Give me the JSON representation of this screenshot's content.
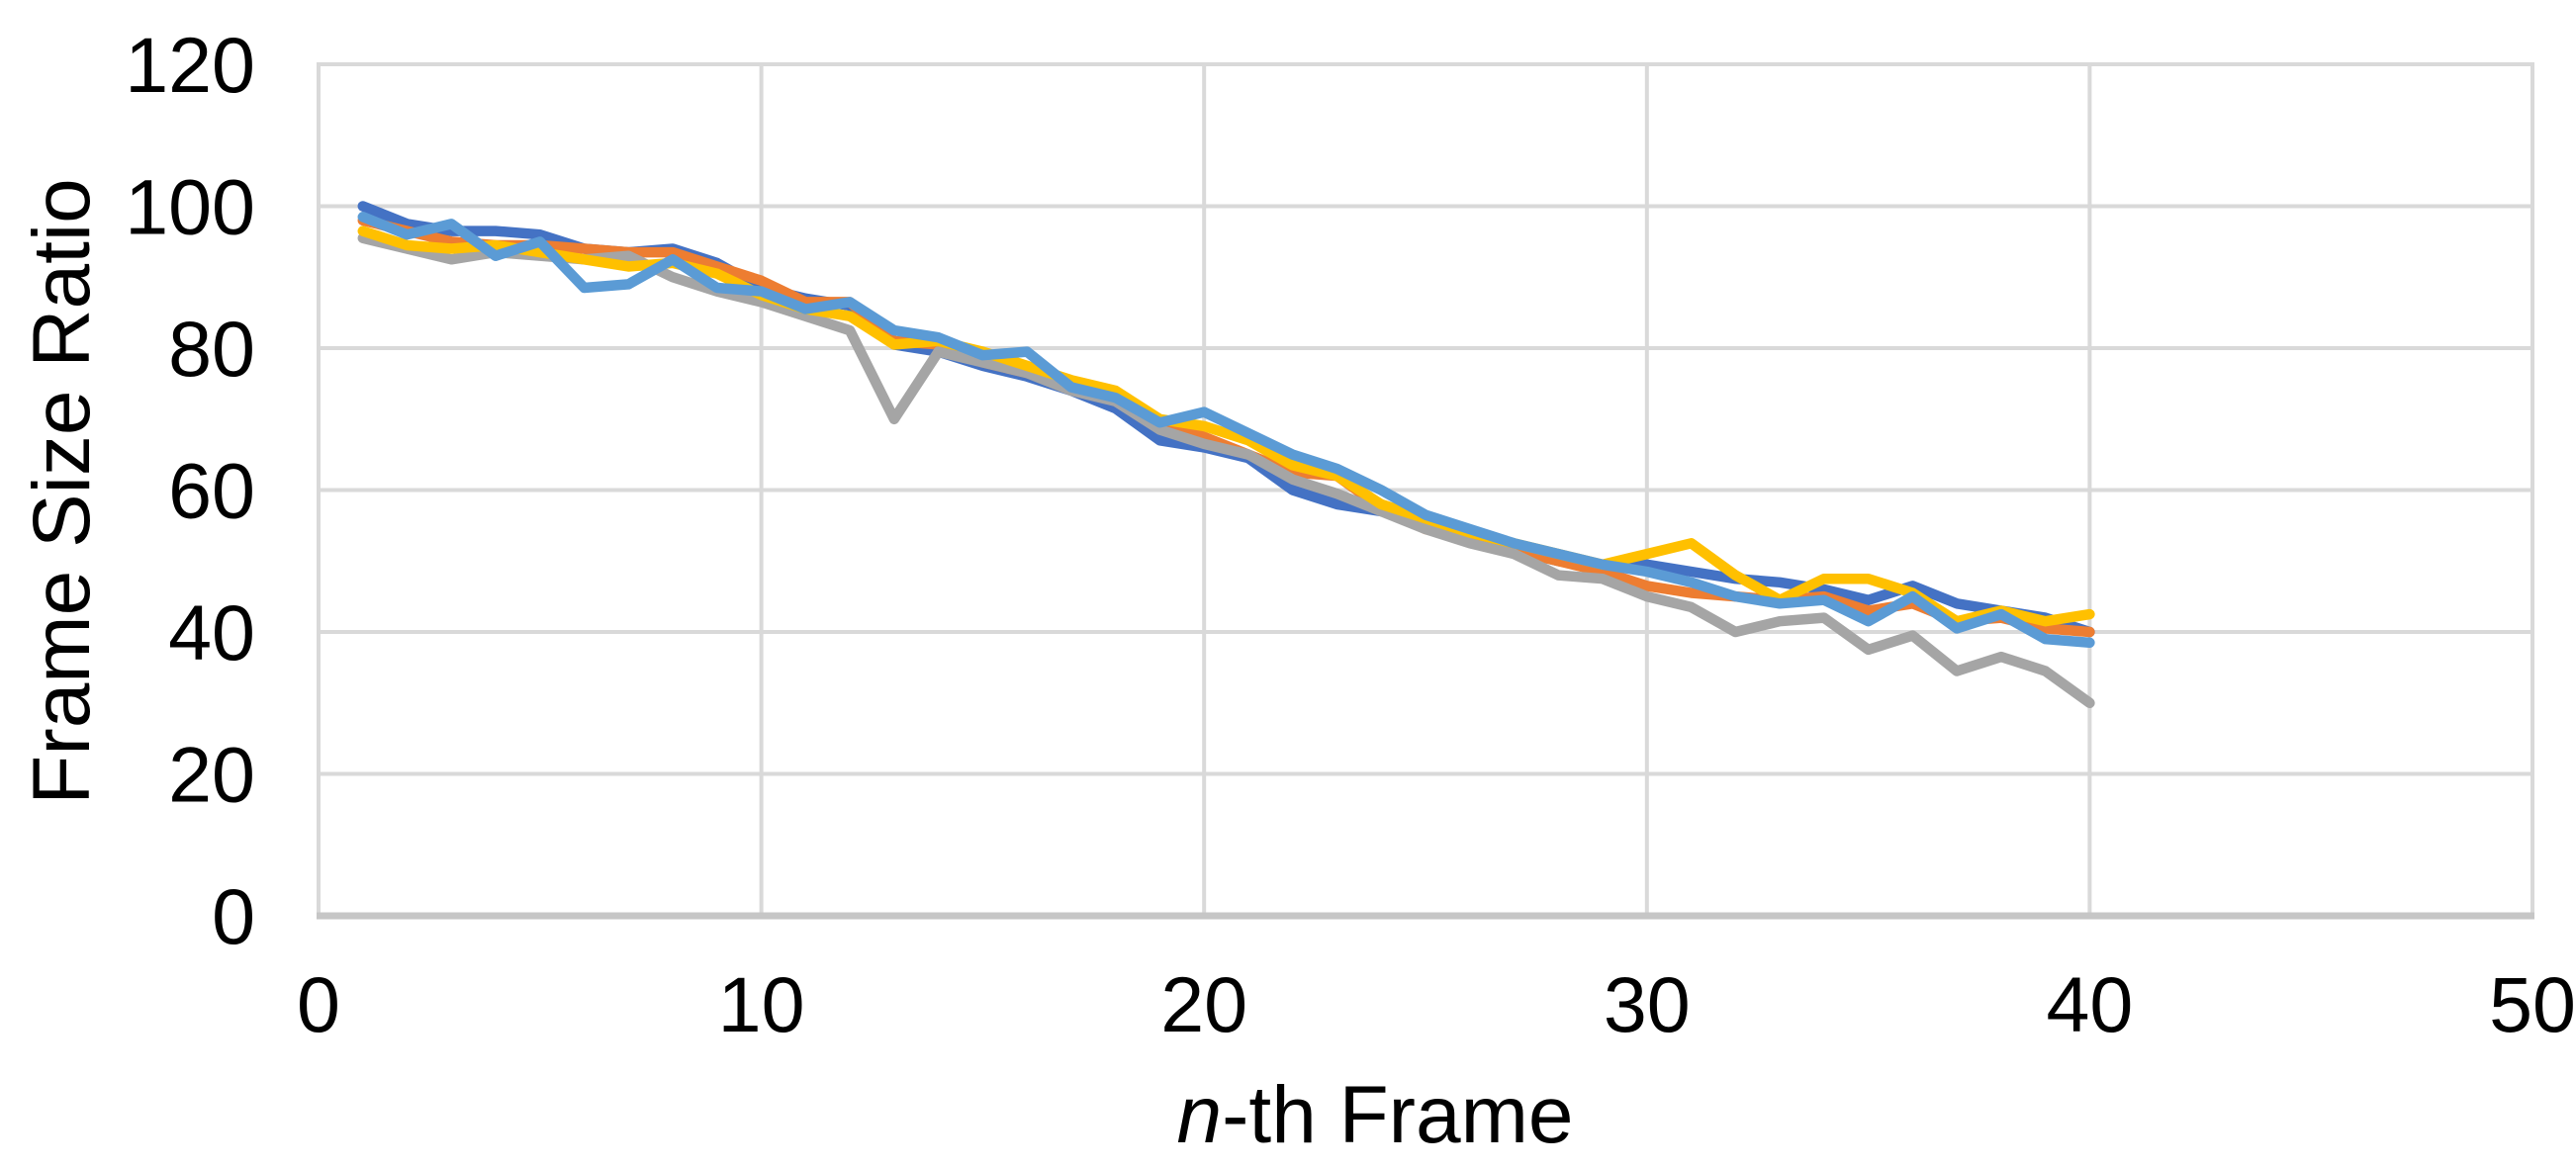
{
  "chart_data": {
    "type": "line",
    "title": "",
    "xlabel": "n-th Frame",
    "xlabel_italic": "n",
    "xlabel_rest": "-th Frame",
    "ylabel": "Frame Size Ratio",
    "xlim": [
      0,
      50
    ],
    "ylim": [
      0,
      120
    ],
    "xticks": [
      0,
      10,
      20,
      30,
      40,
      50
    ],
    "yticks": [
      0,
      20,
      40,
      60,
      80,
      100,
      120
    ],
    "grid": true,
    "legend_position": "none",
    "gridline_color": "#D9D9D9",
    "axis_line_color": "#C6C6C6",
    "text_color": "#000000",
    "x": [
      1,
      2,
      3,
      4,
      5,
      6,
      7,
      8,
      9,
      10,
      11,
      12,
      13,
      14,
      15,
      16,
      17,
      18,
      19,
      20,
      21,
      22,
      23,
      24,
      25,
      26,
      27,
      28,
      29,
      30,
      31,
      32,
      33,
      34,
      35,
      36,
      37,
      38,
      39,
      40
    ],
    "series": [
      {
        "name": "series-1-blue",
        "color": "#4472C4",
        "values": [
          100,
          97.5,
          96.5,
          96.5,
          96,
          94,
          93.5,
          94,
          92,
          88.5,
          87,
          86,
          80.5,
          79.5,
          77.5,
          76,
          74,
          71.5,
          67,
          66,
          64.5,
          60,
          58,
          57,
          55.5,
          53.5,
          51.5,
          50,
          49,
          49.5,
          48.5,
          47.5,
          47,
          46,
          44.5,
          46.5,
          44,
          43,
          42,
          40
        ]
      },
      {
        "name": "series-2-orange",
        "color": "#ED7D31",
        "values": [
          98,
          96.5,
          95,
          94.5,
          94.5,
          94,
          93.5,
          93.5,
          91.5,
          89.5,
          86.5,
          86.5,
          81,
          80.5,
          78,
          76.5,
          74.5,
          72.5,
          69.5,
          67.5,
          65,
          62.5,
          62,
          57.5,
          54.5,
          53,
          51.5,
          50,
          48.5,
          46.5,
          45.5,
          45,
          44.5,
          45,
          43,
          44,
          41.5,
          42,
          40.5,
          40
        ]
      },
      {
        "name": "series-3-gray",
        "color": "#A5A5A5",
        "values": [
          95.5,
          94,
          92.5,
          93.5,
          93,
          92.5,
          93,
          90,
          88,
          86.5,
          84.5,
          82.5,
          70,
          79.5,
          78,
          76.5,
          74,
          72.5,
          68.5,
          66.5,
          65,
          61.5,
          59.5,
          57,
          54.5,
          52.5,
          51,
          48,
          47.5,
          45,
          43.5,
          40,
          41.5,
          42,
          37.5,
          39.5,
          34.5,
          36.5,
          34.5,
          30
        ]
      },
      {
        "name": "series-4-yellow",
        "color": "#FFC000",
        "values": [
          96.5,
          94.5,
          94,
          94.5,
          93.5,
          92.5,
          91.5,
          92,
          90.5,
          87.5,
          85.5,
          84.5,
          80.5,
          81,
          79.5,
          77.5,
          75.5,
          74,
          70,
          69,
          67,
          63.5,
          62,
          58,
          56,
          54,
          52.5,
          51,
          49.5,
          51,
          52.5,
          48,
          44.5,
          47.5,
          47.5,
          45.5,
          41.5,
          43,
          41.5,
          42.5
        ]
      },
      {
        "name": "series-5-lightblue",
        "color": "#5B9BD5",
        "values": [
          98.5,
          96,
          97.5,
          93,
          95,
          88.5,
          89,
          92.5,
          88.5,
          88,
          85.5,
          86.5,
          82.5,
          81.5,
          79,
          79.5,
          74.5,
          73,
          69.5,
          71,
          68,
          65,
          63,
          60,
          56.5,
          54.5,
          52.5,
          51,
          49.5,
          48.5,
          47,
          45,
          44,
          44.5,
          41.5,
          45,
          40.5,
          42.5,
          39,
          38.5
        ]
      }
    ]
  }
}
